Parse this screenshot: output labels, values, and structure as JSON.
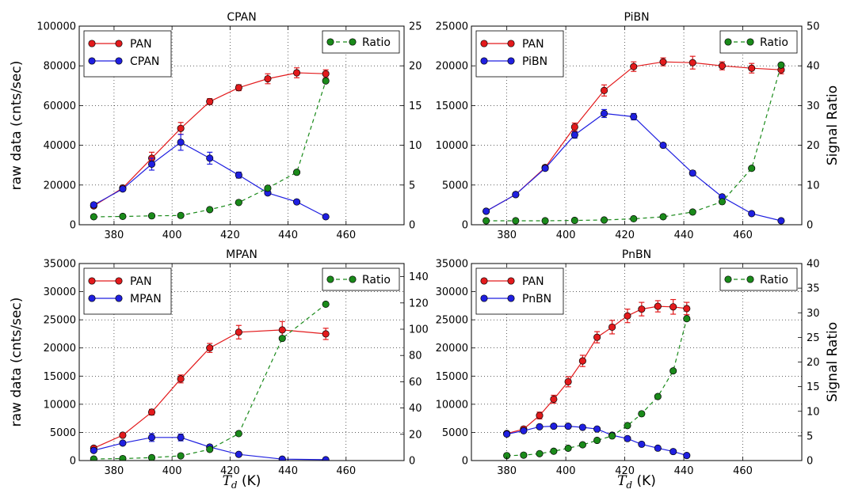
{
  "figure": {
    "ylabel_left": "raw data (cnts/sec)",
    "ylabel_right": "Signal Ratio",
    "xlabel_main": "T",
    "xlabel_sub": "d",
    "xlabel_unit": "(K)"
  },
  "chart_data": [
    {
      "type": "line",
      "title": "CPAN",
      "xlim": [
        368,
        480
      ],
      "xticks": [
        380,
        400,
        420,
        440,
        460
      ],
      "ylim": [
        0,
        100000
      ],
      "yticks": [
        0,
        20000,
        40000,
        60000,
        80000,
        100000
      ],
      "y2lim": [
        0,
        25
      ],
      "y2ticks": [
        0,
        5,
        10,
        15,
        20,
        25
      ],
      "grid": true,
      "legend_left": "top-left",
      "legend_right": "top-right",
      "series": [
        {
          "name": "PAN",
          "axis": "left",
          "color": "#e31a1c",
          "style": "solid",
          "marker_color": "#e31a1c",
          "x": [
            373,
            383,
            393,
            403,
            413,
            423,
            433,
            443,
            453
          ],
          "y": [
            9500,
            18500,
            33500,
            48500,
            62000,
            69000,
            73500,
            76500,
            76000
          ],
          "err": [
            800,
            1200,
            3000,
            3000,
            1500,
            1500,
            2500,
            2500,
            2000
          ]
        },
        {
          "name": "CPAN",
          "axis": "left",
          "color": "#1f1fe0",
          "style": "solid",
          "marker_color": "#1f1fe0",
          "x": [
            373,
            383,
            393,
            403,
            413,
            423,
            433,
            443,
            453
          ],
          "y": [
            10000,
            18000,
            30500,
            41500,
            33500,
            25000,
            16000,
            11500,
            4000
          ],
          "err": [
            800,
            1000,
            3000,
            4000,
            3000,
            1500,
            1000,
            500,
            300
          ]
        },
        {
          "name": "Ratio",
          "axis": "right",
          "color": "#1a8a1a",
          "style": "dashed",
          "marker_color": "#1a8a1a",
          "x": [
            373,
            383,
            393,
            403,
            413,
            423,
            433,
            443,
            453
          ],
          "y": [
            1.0,
            1.05,
            1.12,
            1.17,
            1.9,
            2.8,
            4.6,
            6.6,
            18.1
          ]
        }
      ]
    },
    {
      "type": "line",
      "title": "PiBN",
      "xlim": [
        368,
        480
      ],
      "xticks": [
        380,
        400,
        420,
        440,
        460
      ],
      "ylim": [
        0,
        25000
      ],
      "yticks": [
        0,
        5000,
        10000,
        15000,
        20000,
        25000
      ],
      "y2lim": [
        0,
        50
      ],
      "y2ticks": [
        0,
        10,
        20,
        30,
        40,
        50
      ],
      "grid": true,
      "legend_left": "top-left",
      "legend_right": "top-right",
      "series": [
        {
          "name": "PAN",
          "axis": "left",
          "color": "#e31a1c",
          "style": "solid",
          "marker_color": "#e31a1c",
          "x": [
            373,
            383,
            393,
            403,
            413,
            423,
            433,
            443,
            453,
            463,
            473
          ],
          "y": [
            1700,
            3800,
            7200,
            12300,
            16900,
            19900,
            20500,
            20400,
            20000,
            19700,
            19500
          ],
          "err": [
            200,
            250,
            300,
            500,
            700,
            600,
            500,
            800,
            500,
            600,
            500
          ]
        },
        {
          "name": "PiBN",
          "axis": "left",
          "color": "#1f1fe0",
          "style": "solid",
          "marker_color": "#1f1fe0",
          "x": [
            373,
            383,
            393,
            403,
            413,
            423,
            433,
            443,
            453,
            463,
            473
          ],
          "y": [
            1700,
            3800,
            7100,
            11300,
            14000,
            13600,
            10000,
            6500,
            3500,
            1400,
            500
          ],
          "err": [
            150,
            200,
            250,
            400,
            500,
            400,
            200,
            300,
            200,
            100,
            50
          ]
        },
        {
          "name": "Ratio",
          "axis": "right",
          "color": "#1a8a1a",
          "style": "dashed",
          "marker_color": "#1a8a1a",
          "x": [
            373,
            383,
            393,
            403,
            413,
            423,
            433,
            443,
            453,
            463,
            473
          ],
          "y": [
            1.0,
            1.0,
            1.0,
            1.1,
            1.2,
            1.5,
            2.0,
            3.2,
            5.8,
            14.2,
            40.2
          ]
        }
      ]
    },
    {
      "type": "line",
      "title": "MPAN",
      "xlim": [
        368,
        480
      ],
      "xticks": [
        380,
        400,
        420,
        440,
        460
      ],
      "ylim": [
        0,
        35000
      ],
      "yticks": [
        0,
        5000,
        10000,
        15000,
        20000,
        25000,
        30000,
        35000
      ],
      "y2lim": [
        0,
        150
      ],
      "y2ticks": [
        0,
        20,
        40,
        60,
        80,
        100,
        120,
        140
      ],
      "grid": true,
      "legend_left": "top-left",
      "legend_right": "top-right",
      "series": [
        {
          "name": "PAN",
          "axis": "left",
          "color": "#e31a1c",
          "style": "solid",
          "marker_color": "#e31a1c",
          "x": [
            373,
            383,
            393,
            403,
            413,
            423,
            438,
            453
          ],
          "y": [
            2200,
            4500,
            8600,
            14500,
            20000,
            22800,
            23200,
            22500
          ],
          "err": [
            200,
            300,
            500,
            700,
            800,
            1200,
            1500,
            1000
          ]
        },
        {
          "name": "MPAN",
          "axis": "left",
          "color": "#1f1fe0",
          "style": "solid",
          "marker_color": "#1f1fe0",
          "x": [
            373,
            383,
            393,
            403,
            413,
            423,
            438,
            453
          ],
          "y": [
            1800,
            3100,
            4100,
            4100,
            2400,
            1100,
            250,
            150
          ],
          "err": [
            200,
            300,
            700,
            600,
            400,
            150,
            50,
            50
          ]
        },
        {
          "name": "Ratio",
          "axis": "right",
          "color": "#1a8a1a",
          "style": "dashed",
          "marker_color": "#1a8a1a",
          "x": [
            373,
            383,
            393,
            403,
            413,
            423,
            438,
            453
          ],
          "y": [
            1.2,
            1.5,
            2.2,
            3.6,
            8.5,
            20.5,
            93,
            119
          ]
        }
      ]
    },
    {
      "type": "line",
      "title": "PnBN",
      "xlim": [
        368,
        480
      ],
      "xticks": [
        380,
        400,
        420,
        440,
        460
      ],
      "ylim": [
        0,
        35000
      ],
      "yticks": [
        0,
        5000,
        10000,
        15000,
        20000,
        25000,
        30000,
        35000
      ],
      "y2lim": [
        0,
        40
      ],
      "y2ticks": [
        0,
        5,
        10,
        15,
        20,
        25,
        30,
        35,
        40
      ],
      "grid": true,
      "legend_left": "top-left",
      "legend_right": "top-right",
      "series": [
        {
          "name": "PAN",
          "axis": "left",
          "color": "#e31a1c",
          "style": "solid",
          "marker_color": "#e31a1c",
          "x": [
            380,
            385.7,
            391.1,
            395.9,
            400.8,
            405.7,
            410.6,
            415.7,
            420.9,
            425.7,
            431.2,
            436.4,
            441.0
          ],
          "y": [
            4800,
            5600,
            8000,
            10900,
            14000,
            17700,
            21900,
            23700,
            25700,
            26900,
            27400,
            27300,
            27000
          ],
          "err": [
            300,
            400,
            600,
            700,
            900,
            1000,
            1000,
            1200,
            1200,
            1200,
            1000,
            1300,
            1100
          ]
        },
        {
          "name": "PnBN",
          "axis": "left",
          "color": "#1f1fe0",
          "style": "solid",
          "marker_color": "#1f1fe0",
          "x": [
            380,
            385.7,
            391.1,
            395.9,
            400.8,
            405.7,
            410.6,
            415.7,
            420.9,
            425.7,
            431.2,
            436.4,
            441.0
          ],
          "y": [
            4700,
            5300,
            6000,
            6100,
            6100,
            5900,
            5600,
            4500,
            3900,
            2900,
            2200,
            1600,
            900
          ],
          "err": [
            300,
            300,
            300,
            300,
            300,
            300,
            300,
            300,
            200,
            200,
            200,
            150,
            100
          ]
        },
        {
          "name": "Ratio",
          "axis": "right",
          "color": "#1a8a1a",
          "style": "dashed",
          "marker_color": "#1a8a1a",
          "x": [
            380,
            385.7,
            391.1,
            395.9,
            400.8,
            405.7,
            410.6,
            415.7,
            420.9,
            425.7,
            431.2,
            436.4,
            441.0
          ],
          "y": [
            1.0,
            1.1,
            1.4,
            1.9,
            2.5,
            3.2,
            4.1,
            5.0,
            7.1,
            9.5,
            13.0,
            18.2,
            28.8
          ]
        }
      ]
    }
  ]
}
